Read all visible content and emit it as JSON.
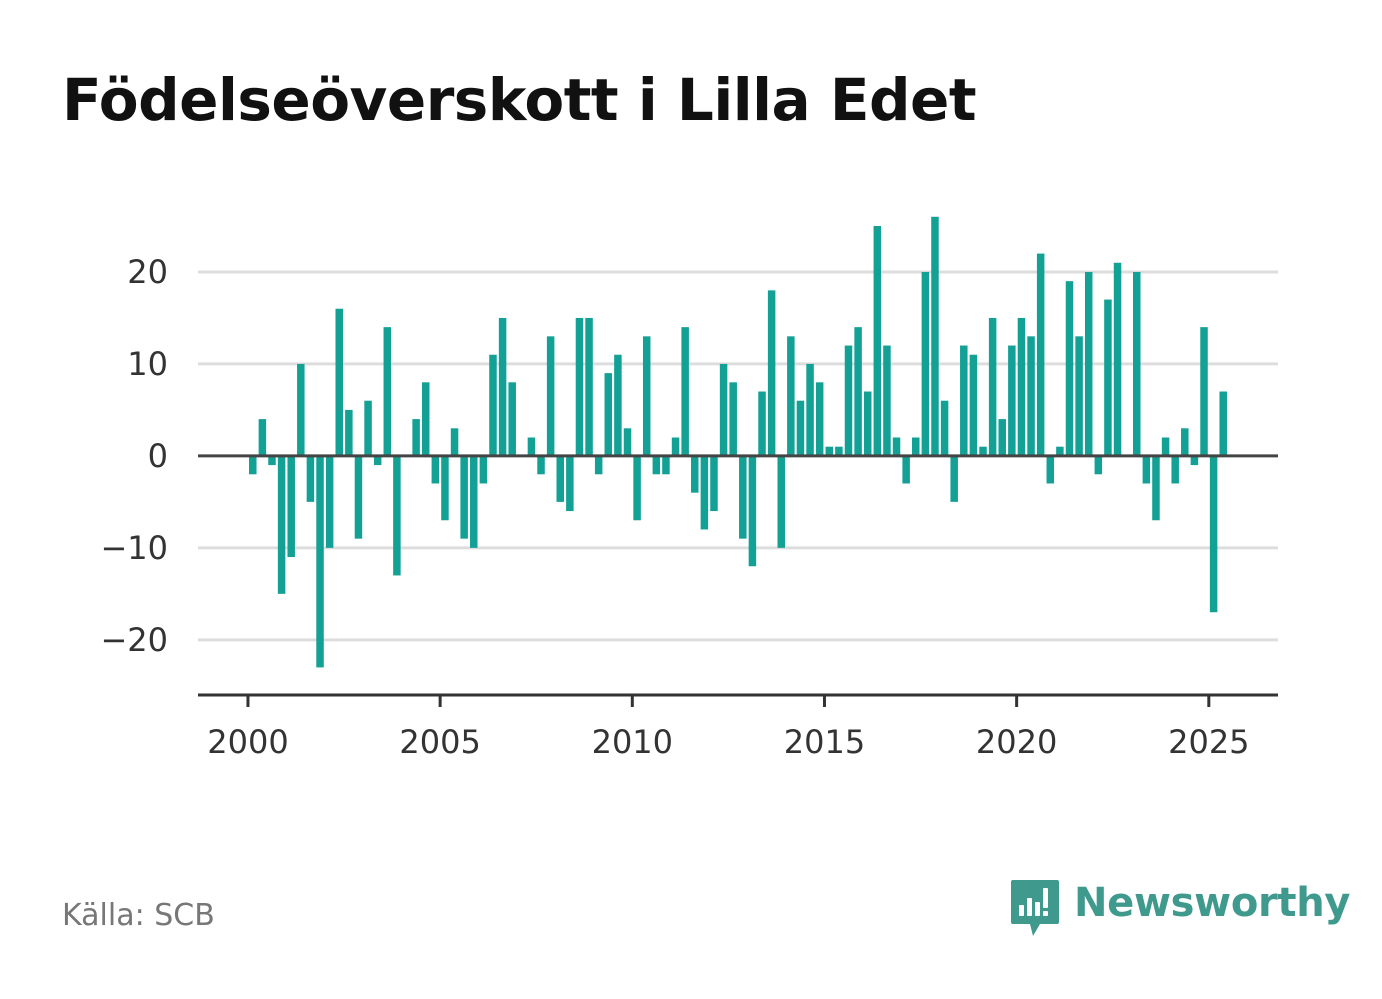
{
  "title": "Födelseöverskott i Lilla Edet",
  "source": "Källa: SCB",
  "brand": {
    "name": "Newsworthy",
    "logo_icon": "bar-chart-speech-bubble-icon",
    "color": "#3f9a8d"
  },
  "colors": {
    "bar": "#13a095",
    "grid": "#dddddd",
    "zero_line": "#444444",
    "axis": "#333333"
  },
  "chart_data": {
    "type": "bar",
    "title": "Födelseöverskott i Lilla Edet",
    "xlabel": "",
    "ylabel": "",
    "x_ticks": [
      2000,
      2005,
      2010,
      2015,
      2020,
      2025
    ],
    "x_tick_labels": [
      "2000",
      "2005",
      "2010",
      "2015",
      "2020",
      "2025"
    ],
    "y_ticks": [
      20,
      10,
      0,
      -10,
      -20
    ],
    "y_tick_labels": [
      "20",
      "10",
      "0",
      "−10",
      "−20"
    ],
    "ylim": [
      -26,
      30
    ],
    "xlim": [
      1998.7,
      2026.8
    ],
    "grid": true,
    "frequency": "quarterly",
    "x": [
      "2000-Q1",
      "2000-Q2",
      "2000-Q3",
      "2000-Q4",
      "2001-Q1",
      "2001-Q2",
      "2001-Q3",
      "2001-Q4",
      "2002-Q1",
      "2002-Q2",
      "2002-Q3",
      "2002-Q4",
      "2003-Q1",
      "2003-Q2",
      "2003-Q3",
      "2003-Q4",
      "2004-Q1",
      "2004-Q2",
      "2004-Q3",
      "2004-Q4",
      "2005-Q1",
      "2005-Q2",
      "2005-Q3",
      "2005-Q4",
      "2006-Q1",
      "2006-Q2",
      "2006-Q3",
      "2006-Q4",
      "2007-Q1",
      "2007-Q2",
      "2007-Q3",
      "2007-Q4",
      "2008-Q1",
      "2008-Q2",
      "2008-Q3",
      "2008-Q4",
      "2009-Q1",
      "2009-Q2",
      "2009-Q3",
      "2009-Q4",
      "2010-Q1",
      "2010-Q2",
      "2010-Q3",
      "2010-Q4",
      "2011-Q1",
      "2011-Q2",
      "2011-Q3",
      "2011-Q4",
      "2012-Q1",
      "2012-Q2",
      "2012-Q3",
      "2012-Q4",
      "2013-Q1",
      "2013-Q2",
      "2013-Q3",
      "2013-Q4",
      "2014-Q1",
      "2014-Q2",
      "2014-Q3",
      "2014-Q4",
      "2015-Q1",
      "2015-Q2",
      "2015-Q3",
      "2015-Q4",
      "2016-Q1",
      "2016-Q2",
      "2016-Q3",
      "2016-Q4",
      "2017-Q1",
      "2017-Q2",
      "2017-Q3",
      "2017-Q4",
      "2018-Q1",
      "2018-Q2",
      "2018-Q3",
      "2018-Q4",
      "2019-Q1",
      "2019-Q2",
      "2019-Q3",
      "2019-Q4",
      "2020-Q1",
      "2020-Q2",
      "2020-Q3",
      "2020-Q4",
      "2021-Q1",
      "2021-Q2",
      "2021-Q3",
      "2021-Q4",
      "2022-Q1",
      "2022-Q2",
      "2022-Q3",
      "2022-Q4",
      "2023-Q1",
      "2023-Q2",
      "2023-Q3",
      "2023-Q4",
      "2024-Q1",
      "2024-Q2",
      "2024-Q3",
      "2024-Q4",
      "2025-Q1",
      "2025-Q2"
    ],
    "values": [
      -2,
      4,
      -1,
      -15,
      -11,
      10,
      -5,
      -23,
      -10,
      16,
      5,
      -9,
      6,
      -1,
      14,
      -13,
      0,
      4,
      8,
      -3,
      -7,
      3,
      -9,
      -10,
      -3,
      11,
      15,
      8,
      0,
      2,
      -2,
      13,
      -5,
      -6,
      15,
      15,
      -2,
      9,
      11,
      3,
      -7,
      13,
      -2,
      -2,
      2,
      14,
      -4,
      -8,
      -6,
      10,
      8,
      -9,
      -12,
      7,
      18,
      -10,
      13,
      6,
      10,
      8,
      1,
      1,
      12,
      14,
      7,
      25,
      12,
      2,
      -3,
      2,
      20,
      26,
      6,
      -5,
      12,
      11,
      1,
      15,
      4,
      12,
      15,
      13,
      22,
      -3,
      1,
      19,
      13,
      20,
      -2,
      17,
      21,
      0,
      20,
      -3,
      -7,
      2,
      -3,
      3,
      -1,
      14,
      -17,
      7
    ]
  }
}
